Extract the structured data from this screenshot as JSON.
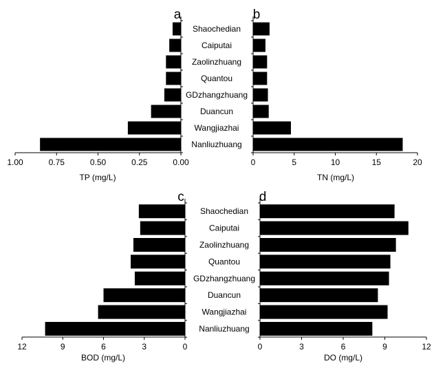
{
  "chart_data": [
    {
      "panel": "a",
      "type": "bar",
      "orientation": "horizontal",
      "direction": "reversed",
      "xlabel": "TP (mg/L)",
      "xlim": [
        0,
        1.0
      ],
      "ticks": [
        "1.00",
        "0.75",
        "0.50",
        "0.25",
        "0.00"
      ],
      "tick_values": [
        1.0,
        0.75,
        0.5,
        0.25,
        0.0
      ],
      "categories": [
        "Shaochedian",
        "Caiputai",
        "Zaolinzhuang",
        "Quantou",
        "GDzhangzhuang",
        "Duancun",
        "Wangjiazhai",
        "Nanliuzhuang"
      ],
      "values": [
        0.05,
        0.07,
        0.09,
        0.09,
        0.1,
        0.18,
        0.32,
        0.85
      ]
    },
    {
      "panel": "b",
      "type": "bar",
      "orientation": "horizontal",
      "direction": "normal",
      "xlabel": "TN (mg/L)",
      "xlim": [
        0,
        20
      ],
      "ticks": [
        "0",
        "5",
        "10",
        "15",
        "20"
      ],
      "tick_values": [
        0,
        5,
        10,
        15,
        20
      ],
      "categories": [
        "Shaochedian",
        "Caiputai",
        "Zaolinzhuang",
        "Quantou",
        "GDzhangzhuang",
        "Duancun",
        "Wangjiazhai",
        "Nanliuzhuang"
      ],
      "values": [
        2.0,
        1.5,
        1.7,
        1.7,
        1.8,
        1.9,
        4.6,
        18.2
      ]
    },
    {
      "panel": "c",
      "type": "bar",
      "orientation": "horizontal",
      "direction": "reversed",
      "xlabel": "BOD (mg/L)",
      "xlim": [
        0,
        12
      ],
      "ticks": [
        "12",
        "9",
        "6",
        "3",
        "0"
      ],
      "tick_values": [
        12,
        9,
        6,
        3,
        0
      ],
      "categories": [
        "Shaochedian",
        "Caiputai",
        "Zaolinzhuang",
        "Quantou",
        "GDzhangzhuang",
        "Duancun",
        "Wangjiazhai",
        "Nanliuzhuang"
      ],
      "values": [
        3.4,
        3.3,
        3.8,
        4.0,
        3.7,
        6.0,
        6.4,
        10.3
      ]
    },
    {
      "panel": "d",
      "type": "bar",
      "orientation": "horizontal",
      "direction": "normal",
      "xlabel": "DO (mg/L)",
      "xlim": [
        0,
        12
      ],
      "ticks": [
        "0",
        "3",
        "6",
        "9",
        "12"
      ],
      "tick_values": [
        0,
        3,
        6,
        9,
        12
      ],
      "categories": [
        "Shaochedian",
        "Caiputai",
        "Zaolinzhuang",
        "Quantou",
        "GDzhangzhuang",
        "Duancun",
        "Wangjiazhai",
        "Nanliuzhuang"
      ],
      "values": [
        9.7,
        10.7,
        9.8,
        9.4,
        9.3,
        8.5,
        9.2,
        8.1
      ]
    }
  ]
}
